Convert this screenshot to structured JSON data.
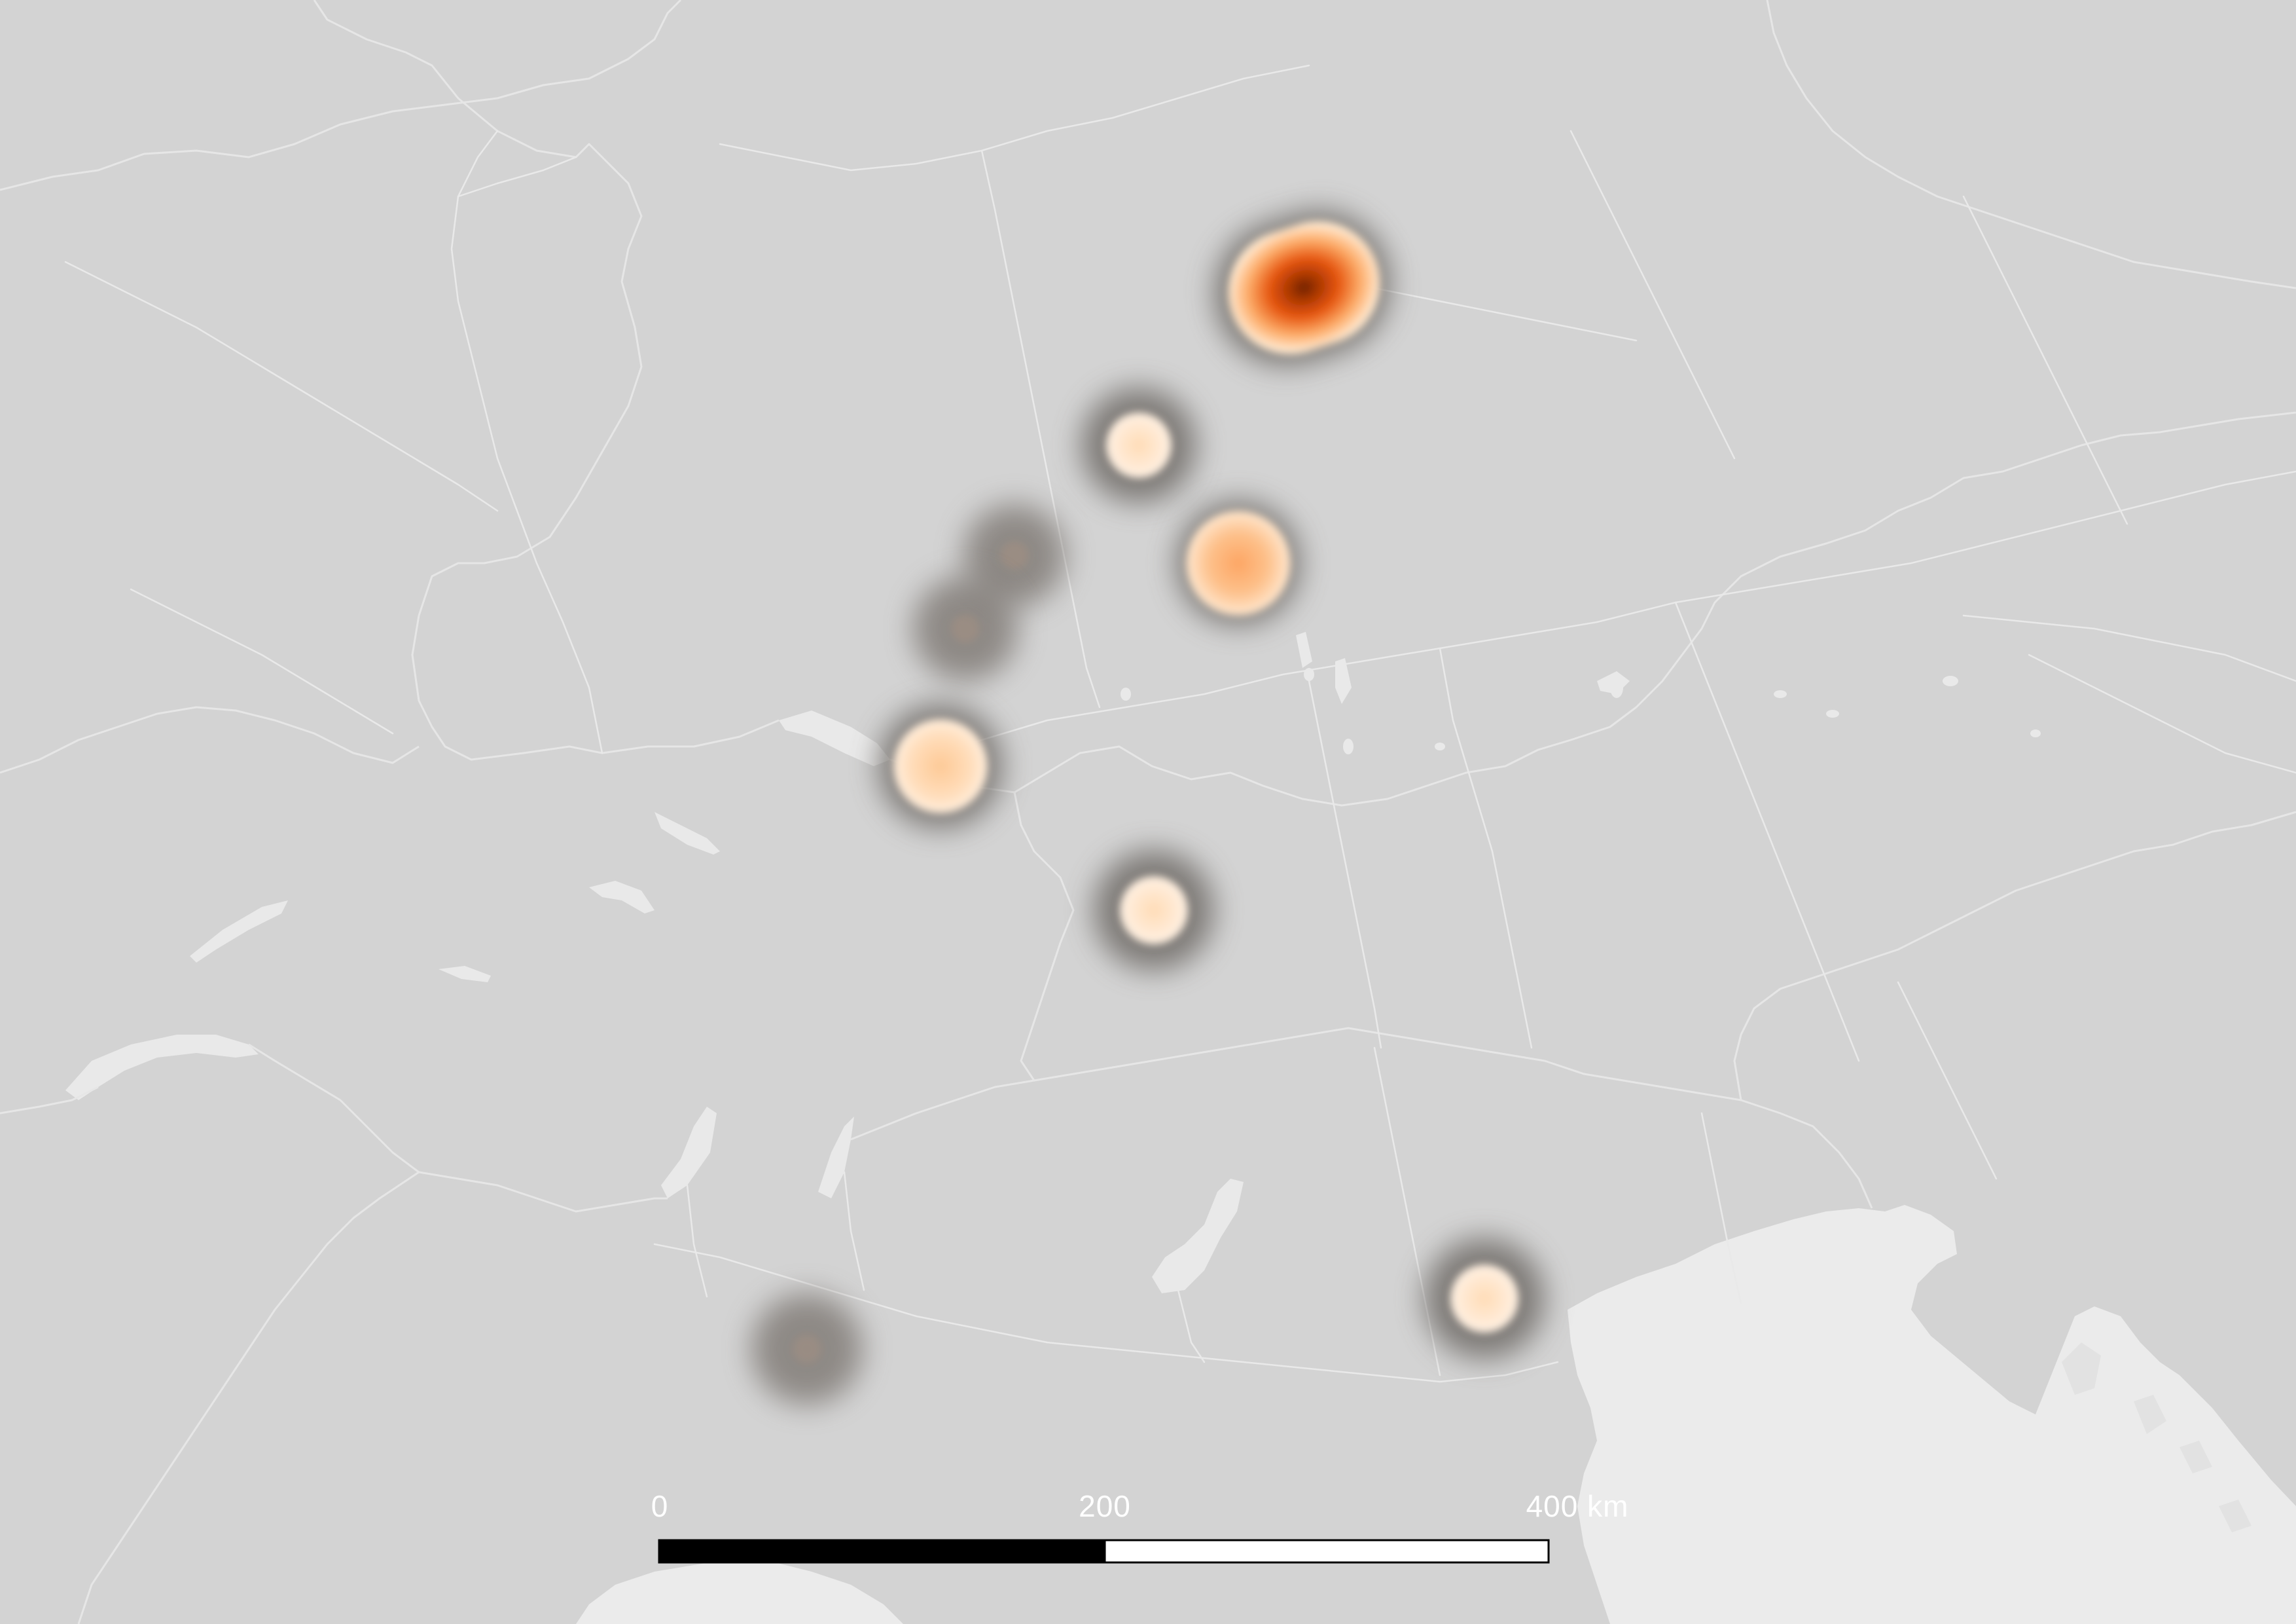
{
  "map": {
    "type": "heatmap",
    "colors": {
      "land": "#d3d3d3",
      "water": "#ebebeb",
      "border": "#e6e6e6",
      "river": "#e9e9e9",
      "halo": "#6e6a66",
      "heat_low": "#fff0dc",
      "heat_mid": "#fdae6b",
      "heat_high": "#e6550d",
      "heat_peak": "#7f2704"
    },
    "hotspots": [
      {
        "name": "hotspot-north-peak",
        "intensity": 1.0
      },
      {
        "name": "hotspot-north-center",
        "intensity": 0.25
      },
      {
        "name": "hotspot-east-center",
        "intensity": 0.5
      },
      {
        "name": "hotspot-faint-upper",
        "intensity": 0.05
      },
      {
        "name": "hotspot-faint-lower",
        "intensity": 0.05
      },
      {
        "name": "hotspot-lake-west",
        "intensity": 0.35
      },
      {
        "name": "hotspot-central-south",
        "intensity": 0.25
      },
      {
        "name": "hotspot-southwest-faint",
        "intensity": 0.05
      },
      {
        "name": "hotspot-adriatic",
        "intensity": 0.25
      }
    ]
  },
  "scale_bar": {
    "labels": [
      "0",
      "200",
      "400 km"
    ],
    "fill_color": "#000000",
    "empty_color": "#ffffff"
  }
}
